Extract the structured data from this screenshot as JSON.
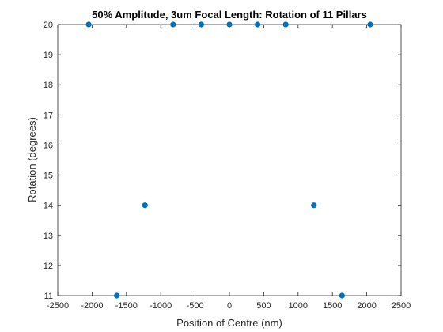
{
  "chart_data": {
    "type": "scatter",
    "title": "50% Amplitude, 3um Focal Length: Rotation of 11 Pillars",
    "xlabel": "Position of Centre (nm)",
    "ylabel": "Rotation (degrees)",
    "xlim": [
      -2500,
      2500
    ],
    "ylim": [
      11,
      20
    ],
    "xticks": [
      -2500,
      -2000,
      -1500,
      -1000,
      -500,
      0,
      500,
      1000,
      1500,
      2000,
      2500
    ],
    "yticks": [
      11,
      12,
      13,
      14,
      15,
      16,
      17,
      18,
      19,
      20
    ],
    "grid": false,
    "marker_color": "#0072BD",
    "axis_color": "#262626",
    "series": [
      {
        "points": [
          {
            "x": -2050,
            "y": 20
          },
          {
            "x": -1640,
            "y": 11
          },
          {
            "x": -1230,
            "y": 14
          },
          {
            "x": -820,
            "y": 20
          },
          {
            "x": -410,
            "y": 20
          },
          {
            "x": 0,
            "y": 20
          },
          {
            "x": 410,
            "y": 20
          },
          {
            "x": 820,
            "y": 20
          },
          {
            "x": 1230,
            "y": 14
          },
          {
            "x": 1640,
            "y": 11
          },
          {
            "x": 2050,
            "y": 20
          }
        ]
      }
    ]
  }
}
